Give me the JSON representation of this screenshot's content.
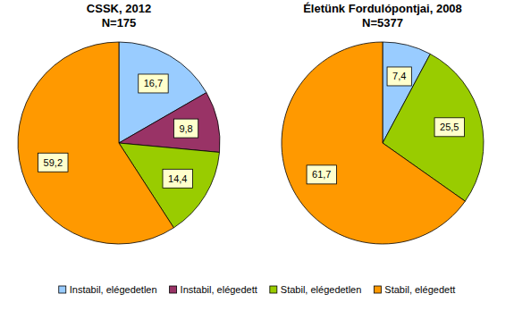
{
  "chart_data": [
    {
      "type": "pie",
      "title": "CSSK, 2012",
      "subtitle": "N=175",
      "categories": [
        "Instabil, elégedetlen",
        "Instabil, elégedett",
        "Stabil, elégedetlen",
        "Stabil, elégedett"
      ],
      "values": [
        16.7,
        9.8,
        14.4,
        59.2
      ],
      "value_labels": [
        "16,7",
        "9,8",
        "14,4",
        "59,2"
      ],
      "colors": [
        "#99ccff",
        "#993366",
        "#99cc00",
        "#ff9900"
      ],
      "data_labels": true,
      "legend": "bottom"
    },
    {
      "type": "pie",
      "title": "Életünk Fordulópontjai, 2008",
      "subtitle": "N=5377",
      "categories": [
        "Instabil, elégedetlen",
        "Stabil, elégedetlen",
        "Stabil, elégedett"
      ],
      "values": [
        7.4,
        25.5,
        61.7
      ],
      "value_labels": [
        "7,4",
        "25,5",
        "61,7"
      ],
      "colors": [
        "#99ccff",
        "#99cc00",
        "#ff9900"
      ],
      "data_labels": true
    }
  ]
}
